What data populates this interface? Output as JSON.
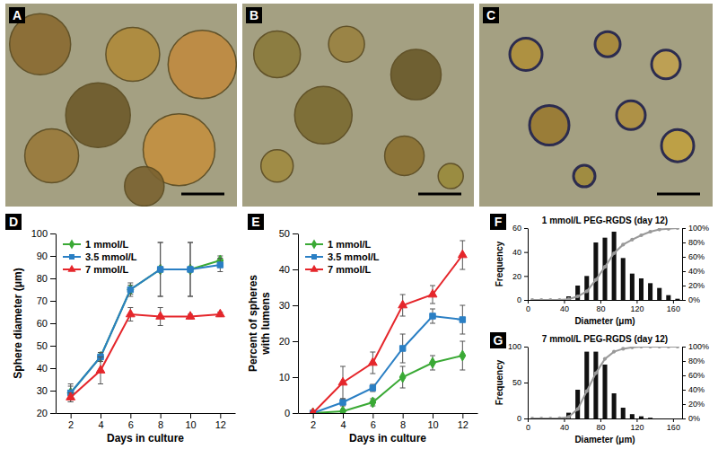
{
  "images": [
    {
      "panel": "A"
    },
    {
      "panel": "B"
    },
    {
      "panel": "C"
    }
  ],
  "chart_data": [
    {
      "type": "line",
      "panel": "D",
      "x": [
        2,
        4,
        6,
        8,
        10,
        12
      ],
      "xlim": [
        1,
        13
      ],
      "xticks": [
        2,
        4,
        6,
        8,
        10,
        12
      ],
      "ylim": [
        20,
        100
      ],
      "yticks": [
        20,
        30,
        40,
        50,
        60,
        70,
        80,
        90,
        100
      ],
      "xlabel": "Days in culture",
      "ylabel": [
        "Sphere diameter (μm)"
      ],
      "legend": "upper left",
      "series": [
        {
          "name": "1 mmol/L",
          "color": "#3aa935",
          "marker": "diamond",
          "values": [
            29,
            45,
            75,
            84,
            84,
            88
          ],
          "errors": [
            4,
            2,
            2,
            12,
            12,
            2
          ]
        },
        {
          "name": "3.5 mmol/L",
          "color": "#2a7fc4",
          "marker": "square",
          "values": [
            29,
            45,
            75,
            84,
            84,
            86
          ],
          "errors": [
            3,
            2,
            3,
            12,
            12,
            3
          ]
        },
        {
          "name": "7 mmol/L",
          "color": "#e5262b",
          "marker": "triangle",
          "values": [
            27,
            39,
            64,
            63,
            63,
            64
          ],
          "errors": [
            2,
            6,
            3,
            4,
            1,
            1
          ]
        }
      ]
    },
    {
      "type": "line",
      "panel": "E",
      "x": [
        2,
        4,
        6,
        8,
        10,
        12
      ],
      "xlim": [
        1,
        13
      ],
      "xticks": [
        2,
        4,
        6,
        8,
        10,
        12
      ],
      "ylim": [
        0,
        50
      ],
      "yticks": [
        0,
        10,
        20,
        30,
        40,
        50
      ],
      "xlabel": "Days in culture",
      "ylabel": [
        "Percent of spheres",
        "with lumens"
      ],
      "legend": "upper left",
      "series": [
        {
          "name": "1 mmol/L",
          "color": "#3aa935",
          "marker": "diamond",
          "values": [
            0,
            0.5,
            3,
            10,
            14,
            16
          ],
          "errors": [
            0,
            0.5,
            1,
            3,
            2,
            4
          ]
        },
        {
          "name": "3.5 mmol/L",
          "color": "#2a7fc4",
          "marker": "square",
          "values": [
            0,
            3,
            7,
            18,
            27,
            26
          ],
          "errors": [
            0,
            1,
            1,
            4,
            2,
            4
          ]
        },
        {
          "name": "7 mmol/L",
          "color": "#e5262b",
          "marker": "triangle",
          "values": [
            0,
            8.5,
            14,
            30,
            33,
            44
          ],
          "errors": [
            0,
            4.5,
            3,
            3,
            2.5,
            4
          ]
        }
      ]
    },
    {
      "type": "histogram",
      "panel": "F",
      "title": "1 mmol/L PEG-RGDS (day 12)",
      "bins": [
        0,
        10,
        20,
        30,
        40,
        50,
        60,
        70,
        80,
        90,
        100,
        110,
        120,
        130,
        140,
        150,
        160,
        170
      ],
      "xlim": [
        0,
        170
      ],
      "xticks": [
        0,
        40,
        80,
        120,
        160
      ],
      "ylim": [
        0,
        60
      ],
      "yticks": [
        0,
        20,
        40,
        60
      ],
      "y2lim": [
        0,
        100
      ],
      "y2ticks": [
        {
          "value": 0,
          "label": "0%"
        },
        {
          "value": 20,
          "label": "20%"
        },
        {
          "value": 40,
          "label": "40%"
        },
        {
          "value": 60,
          "label": "60%"
        },
        {
          "value": 80,
          "label": "80%"
        },
        {
          "value": 100,
          "label": "100%"
        }
      ],
      "xlabel": "Diameter (μm)",
      "ylabel": [
        "Frequency"
      ],
      "series": [
        {
          "type": "bar",
          "color": "#111111",
          "values": [
            0,
            0,
            0,
            0,
            3,
            12,
            20,
            48,
            52,
            57,
            35,
            22,
            18,
            14,
            10,
            4,
            1
          ]
        },
        {
          "type": "line",
          "axis": "y2",
          "color": "#999999",
          "marker": "circle",
          "values": [
            0,
            0,
            0,
            0,
            1,
            5,
            12,
            28,
            46,
            65,
            77,
            84,
            90,
            95,
            98,
            99,
            100
          ]
        }
      ]
    },
    {
      "type": "histogram",
      "panel": "G",
      "title": "7 mmol/L PEG-RGDS (day 12)",
      "bins": [
        0,
        10,
        20,
        30,
        40,
        50,
        60,
        70,
        80,
        90,
        100,
        110,
        120,
        130,
        140,
        150,
        160,
        170
      ],
      "xlim": [
        0,
        170
      ],
      "xticks": [
        0,
        40,
        80,
        120,
        160
      ],
      "ylim": [
        0,
        100
      ],
      "yticks": [
        0,
        50,
        100
      ],
      "y2lim": [
        0,
        100
      ],
      "y2ticks": [
        {
          "value": 0,
          "label": "0%"
        },
        {
          "value": 20,
          "label": "20%"
        },
        {
          "value": 40,
          "label": "40%"
        },
        {
          "value": 60,
          "label": "60%"
        },
        {
          "value": 80,
          "label": "80%"
        },
        {
          "value": 100,
          "label": "100%"
        }
      ],
      "xlabel": "Diameter (μm)",
      "ylabel": [
        "Frequency"
      ],
      "series": [
        {
          "type": "bar",
          "color": "#111111",
          "values": [
            0,
            0,
            0,
            1,
            8,
            40,
            93,
            93,
            75,
            35,
            15,
            6,
            3,
            1,
            0,
            0,
            0
          ]
        },
        {
          "type": "line",
          "axis": "y2",
          "color": "#999999",
          "marker": "circle",
          "values": [
            0,
            0,
            0,
            0.3,
            2,
            13,
            38,
            63,
            83,
            93,
            97,
            99,
            100,
            100,
            100,
            100,
            100
          ]
        }
      ]
    }
  ]
}
